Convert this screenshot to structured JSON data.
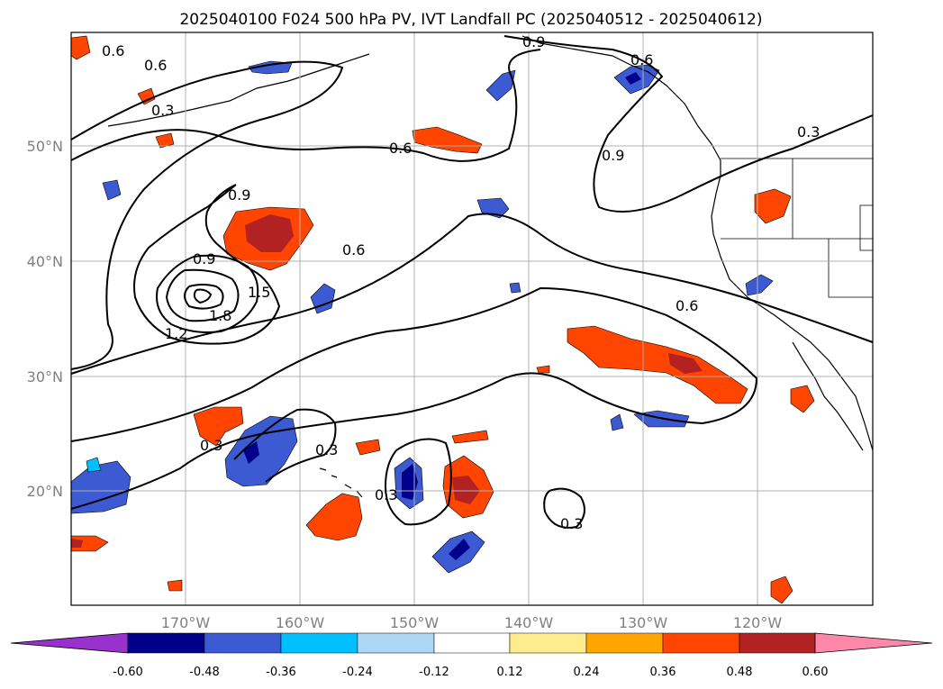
{
  "title": "2025040100 F024 500 hPa PV, IVT Landfall PC (2025040512 - 2025040612)",
  "lon_labels": [
    "170°W",
    "160°W",
    "150°W",
    "140°W",
    "130°W",
    "120°W"
  ],
  "lat_labels": [
    "50°N",
    "40°N",
    "30°N",
    "20°N"
  ],
  "contour_labels": [
    "0.3",
    "0.6",
    "0.9",
    "1.2",
    "1.5",
    "1.8"
  ],
  "colorbar": {
    "ticks": [
      "-0.60",
      "-0.48",
      "-0.36",
      "-0.24",
      "-0.12",
      "0.12",
      "0.24",
      "0.36",
      "0.48",
      "0.60"
    ],
    "colors": [
      "#9932cc",
      "#00008b",
      "#3c5ad2",
      "#00bfff",
      "#add8f5",
      "#ffffff",
      "#ffec8c",
      "#ffa500",
      "#ff4500",
      "#b22222",
      "#ff88aa"
    ]
  },
  "colors": {
    "contour": "#000000",
    "grid": "#b0b0b0",
    "coast": "#000000"
  }
}
